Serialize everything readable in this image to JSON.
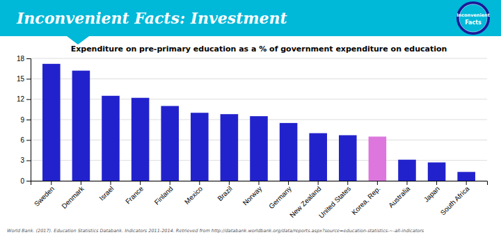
{
  "chart_data": {
    "type": "bar",
    "title": "Expenditure on pre-primary education as a % of government expenditure on education",
    "annotations": [
      "Inconvenient Facts: Investment",
      "Inconvenient",
      "Facts",
      "World Bank. (2017). Education Statistics Databank. Indicators 2011-2014. Retrieved from http://databank.worldbank.org/data/reports.aspx?source=education-statistics-~-all-indicators"
    ],
    "categories": [
      "Sweden",
      "Denmark",
      "Israel",
      "France",
      "Finland",
      "Mexico",
      "Brazil",
      "Norway",
      "Germany",
      "New Zealand",
      "United States",
      "Korea, Rep.",
      "Australia",
      "Japan",
      "South Africa"
    ],
    "values": [
      17.2,
      16.2,
      12.5,
      12.2,
      11.0,
      10.0,
      9.8,
      9.5,
      8.5,
      7.0,
      6.7,
      6.5,
      3.1,
      2.7,
      1.3
    ],
    "colors": [
      "#2222cc",
      "#2222cc",
      "#2222cc",
      "#2222cc",
      "#2222cc",
      "#2222cc",
      "#2222cc",
      "#2222cc",
      "#2222cc",
      "#2222cc",
      "#2222cc",
      "#dd77dd",
      "#2222cc",
      "#2222cc",
      "#2222cc"
    ],
    "ylim": [
      0,
      18
    ],
    "yticks": [
      0,
      3,
      6,
      9,
      12,
      15,
      18
    ],
    "grid": true
  }
}
